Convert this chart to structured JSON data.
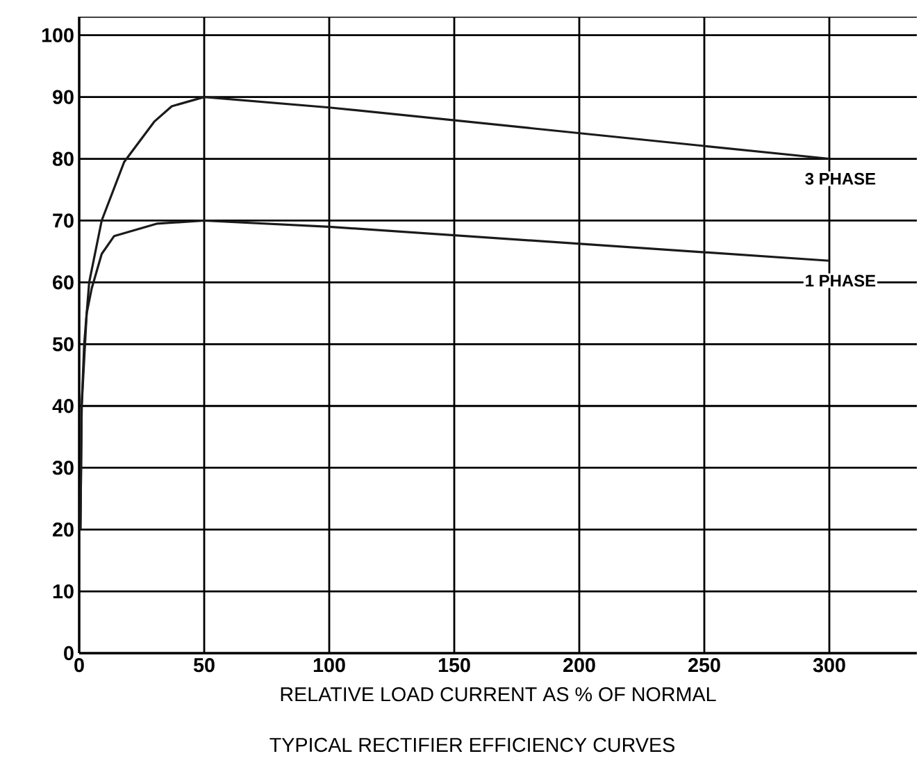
{
  "chart_data": {
    "type": "line",
    "title": "TYPICAL RECTIFIER EFFICIENCY CURVES",
    "xlabel": "RELATIVE LOAD CURRENT AS % OF NORMAL",
    "xlim": [
      0,
      335
    ],
    "ylim": [
      0,
      103
    ],
    "xticks": [
      0,
      50,
      100,
      150,
      200,
      250,
      300
    ],
    "yticks": [
      0,
      10,
      20,
      30,
      40,
      50,
      60,
      70,
      80,
      90,
      100
    ],
    "grid": true,
    "series": [
      {
        "name": "3 PHASE",
        "color": "#1a1a1a",
        "x": [
          0.5,
          1,
          2,
          4,
          9,
          18,
          30,
          37,
          50,
          100,
          300
        ],
        "values": [
          20,
          40,
          50,
          60,
          70,
          79.5,
          86,
          88.5,
          90,
          88.3,
          80
        ]
      },
      {
        "name": "1 PHASE",
        "color": "#1a1a1a",
        "x": [
          0.5,
          1,
          3,
          5,
          9,
          14,
          31,
          50,
          100,
          300
        ],
        "values": [
          20,
          40,
          55,
          59,
          64.6,
          67.5,
          69.5,
          70,
          69,
          63.5
        ]
      }
    ]
  }
}
